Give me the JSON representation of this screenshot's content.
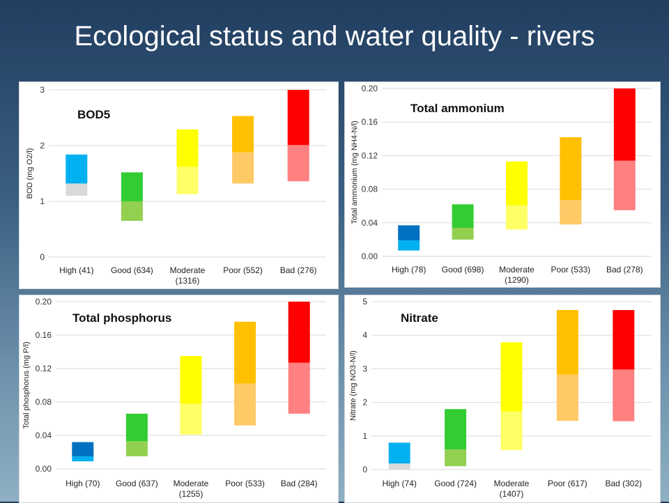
{
  "slide": {
    "title": "Ecological status and water quality - rivers"
  },
  "chart_data": [
    {
      "type": "bar",
      "title": "BOD5",
      "ylabel": "BOD (mg O2/l)",
      "ylim": [
        0,
        3
      ],
      "yticks": [
        "0",
        "1",
        "2",
        "3"
      ],
      "categories": [
        "High (41)",
        "Good (634)",
        "Moderate|(1316)",
        "Poor (552)",
        "Bad (276)"
      ],
      "series": [
        {
          "values": [
            [
              1.1,
              1.32,
              1.84
            ],
            [
              0.65,
              1.0,
              1.52
            ],
            [
              1.13,
              1.62,
              2.29
            ],
            [
              1.32,
              1.88,
              2.53
            ],
            [
              1.36,
              2.01,
              3.0
            ]
          ]
        }
      ],
      "colors": [
        [
          "#d9d9d9",
          "#00b0f0"
        ],
        [
          "#92d050",
          "#33cc33"
        ],
        [
          "#ffff66",
          "#ffff00"
        ],
        [
          "#ffc966",
          "#ffc000"
        ],
        [
          "#ff8080",
          "#ff0000"
        ]
      ],
      "grid": true
    },
    {
      "type": "bar",
      "title": "Total ammonium",
      "ylabel": "Total ammonium (mg NH4-N/l)",
      "ylim": [
        0,
        0.2
      ],
      "yticks": [
        "0.00",
        "0.04",
        "0.08",
        "0.12",
        "0.16",
        "0.20"
      ],
      "categories": [
        "High (78)",
        "Good (698)",
        "Moderate|(1290)",
        "Poor (533)",
        "Bad (278)"
      ],
      "series": [
        {
          "values": [
            [
              0.007,
              0.019,
              0.037
            ],
            [
              0.02,
              0.034,
              0.062
            ],
            [
              0.032,
              0.061,
              0.113
            ],
            [
              0.038,
              0.067,
              0.142
            ],
            [
              0.055,
              0.114,
              0.2
            ]
          ]
        }
      ],
      "colors": [
        [
          "#00b0f0",
          "#0070c0"
        ],
        [
          "#92d050",
          "#33cc33"
        ],
        [
          "#ffff66",
          "#ffff00"
        ],
        [
          "#ffc966",
          "#ffc000"
        ],
        [
          "#ff8080",
          "#ff0000"
        ]
      ],
      "grid": true
    },
    {
      "type": "bar",
      "title": "Total phosphorus",
      "ylabel": "Total phosphorus (mg P/l)",
      "ylim": [
        0,
        0.2
      ],
      "yticks": [
        "0.00",
        "0.04",
        "0.08",
        "0.12",
        "0.16",
        "0.20"
      ],
      "categories": [
        "High (70)",
        "Good (637)",
        "Moderate|(1255)",
        "Poor (533)",
        "Bad (284)"
      ],
      "series": [
        {
          "values": [
            [
              0.009,
              0.015,
              0.032
            ],
            [
              0.015,
              0.033,
              0.066
            ],
            [
              0.041,
              0.078,
              0.135
            ],
            [
              0.052,
              0.102,
              0.176
            ],
            [
              0.066,
              0.127,
              0.2
            ]
          ]
        }
      ],
      "colors": [
        [
          "#00b0f0",
          "#0070c0"
        ],
        [
          "#92d050",
          "#33cc33"
        ],
        [
          "#ffff66",
          "#ffff00"
        ],
        [
          "#ffc966",
          "#ffc000"
        ],
        [
          "#ff8080",
          "#ff0000"
        ]
      ],
      "grid": true
    },
    {
      "type": "bar",
      "title": "Nitrate",
      "ylabel": "Nitrate (mg NO3-N/l)",
      "ylim": [
        0,
        5
      ],
      "yticks": [
        "0",
        "1",
        "2",
        "3",
        "4",
        "5"
      ],
      "categories": [
        "High (74)",
        "Good (724)",
        "Moderate|(1407)",
        "Poor (617)",
        "Bad (302)"
      ],
      "series": [
        {
          "values": [
            [
              0.0,
              0.18,
              0.8
            ],
            [
              0.1,
              0.6,
              1.8
            ],
            [
              0.58,
              1.73,
              3.79
            ],
            [
              1.45,
              2.83,
              4.75
            ],
            [
              1.44,
              2.98,
              4.75
            ]
          ]
        }
      ],
      "colors": [
        [
          "#d9d9d9",
          "#00b0f0"
        ],
        [
          "#92d050",
          "#33cc33"
        ],
        [
          "#ffff66",
          "#ffff00"
        ],
        [
          "#ffc966",
          "#ffc000"
        ],
        [
          "#ff8080",
          "#ff0000"
        ]
      ],
      "grid": true
    }
  ]
}
